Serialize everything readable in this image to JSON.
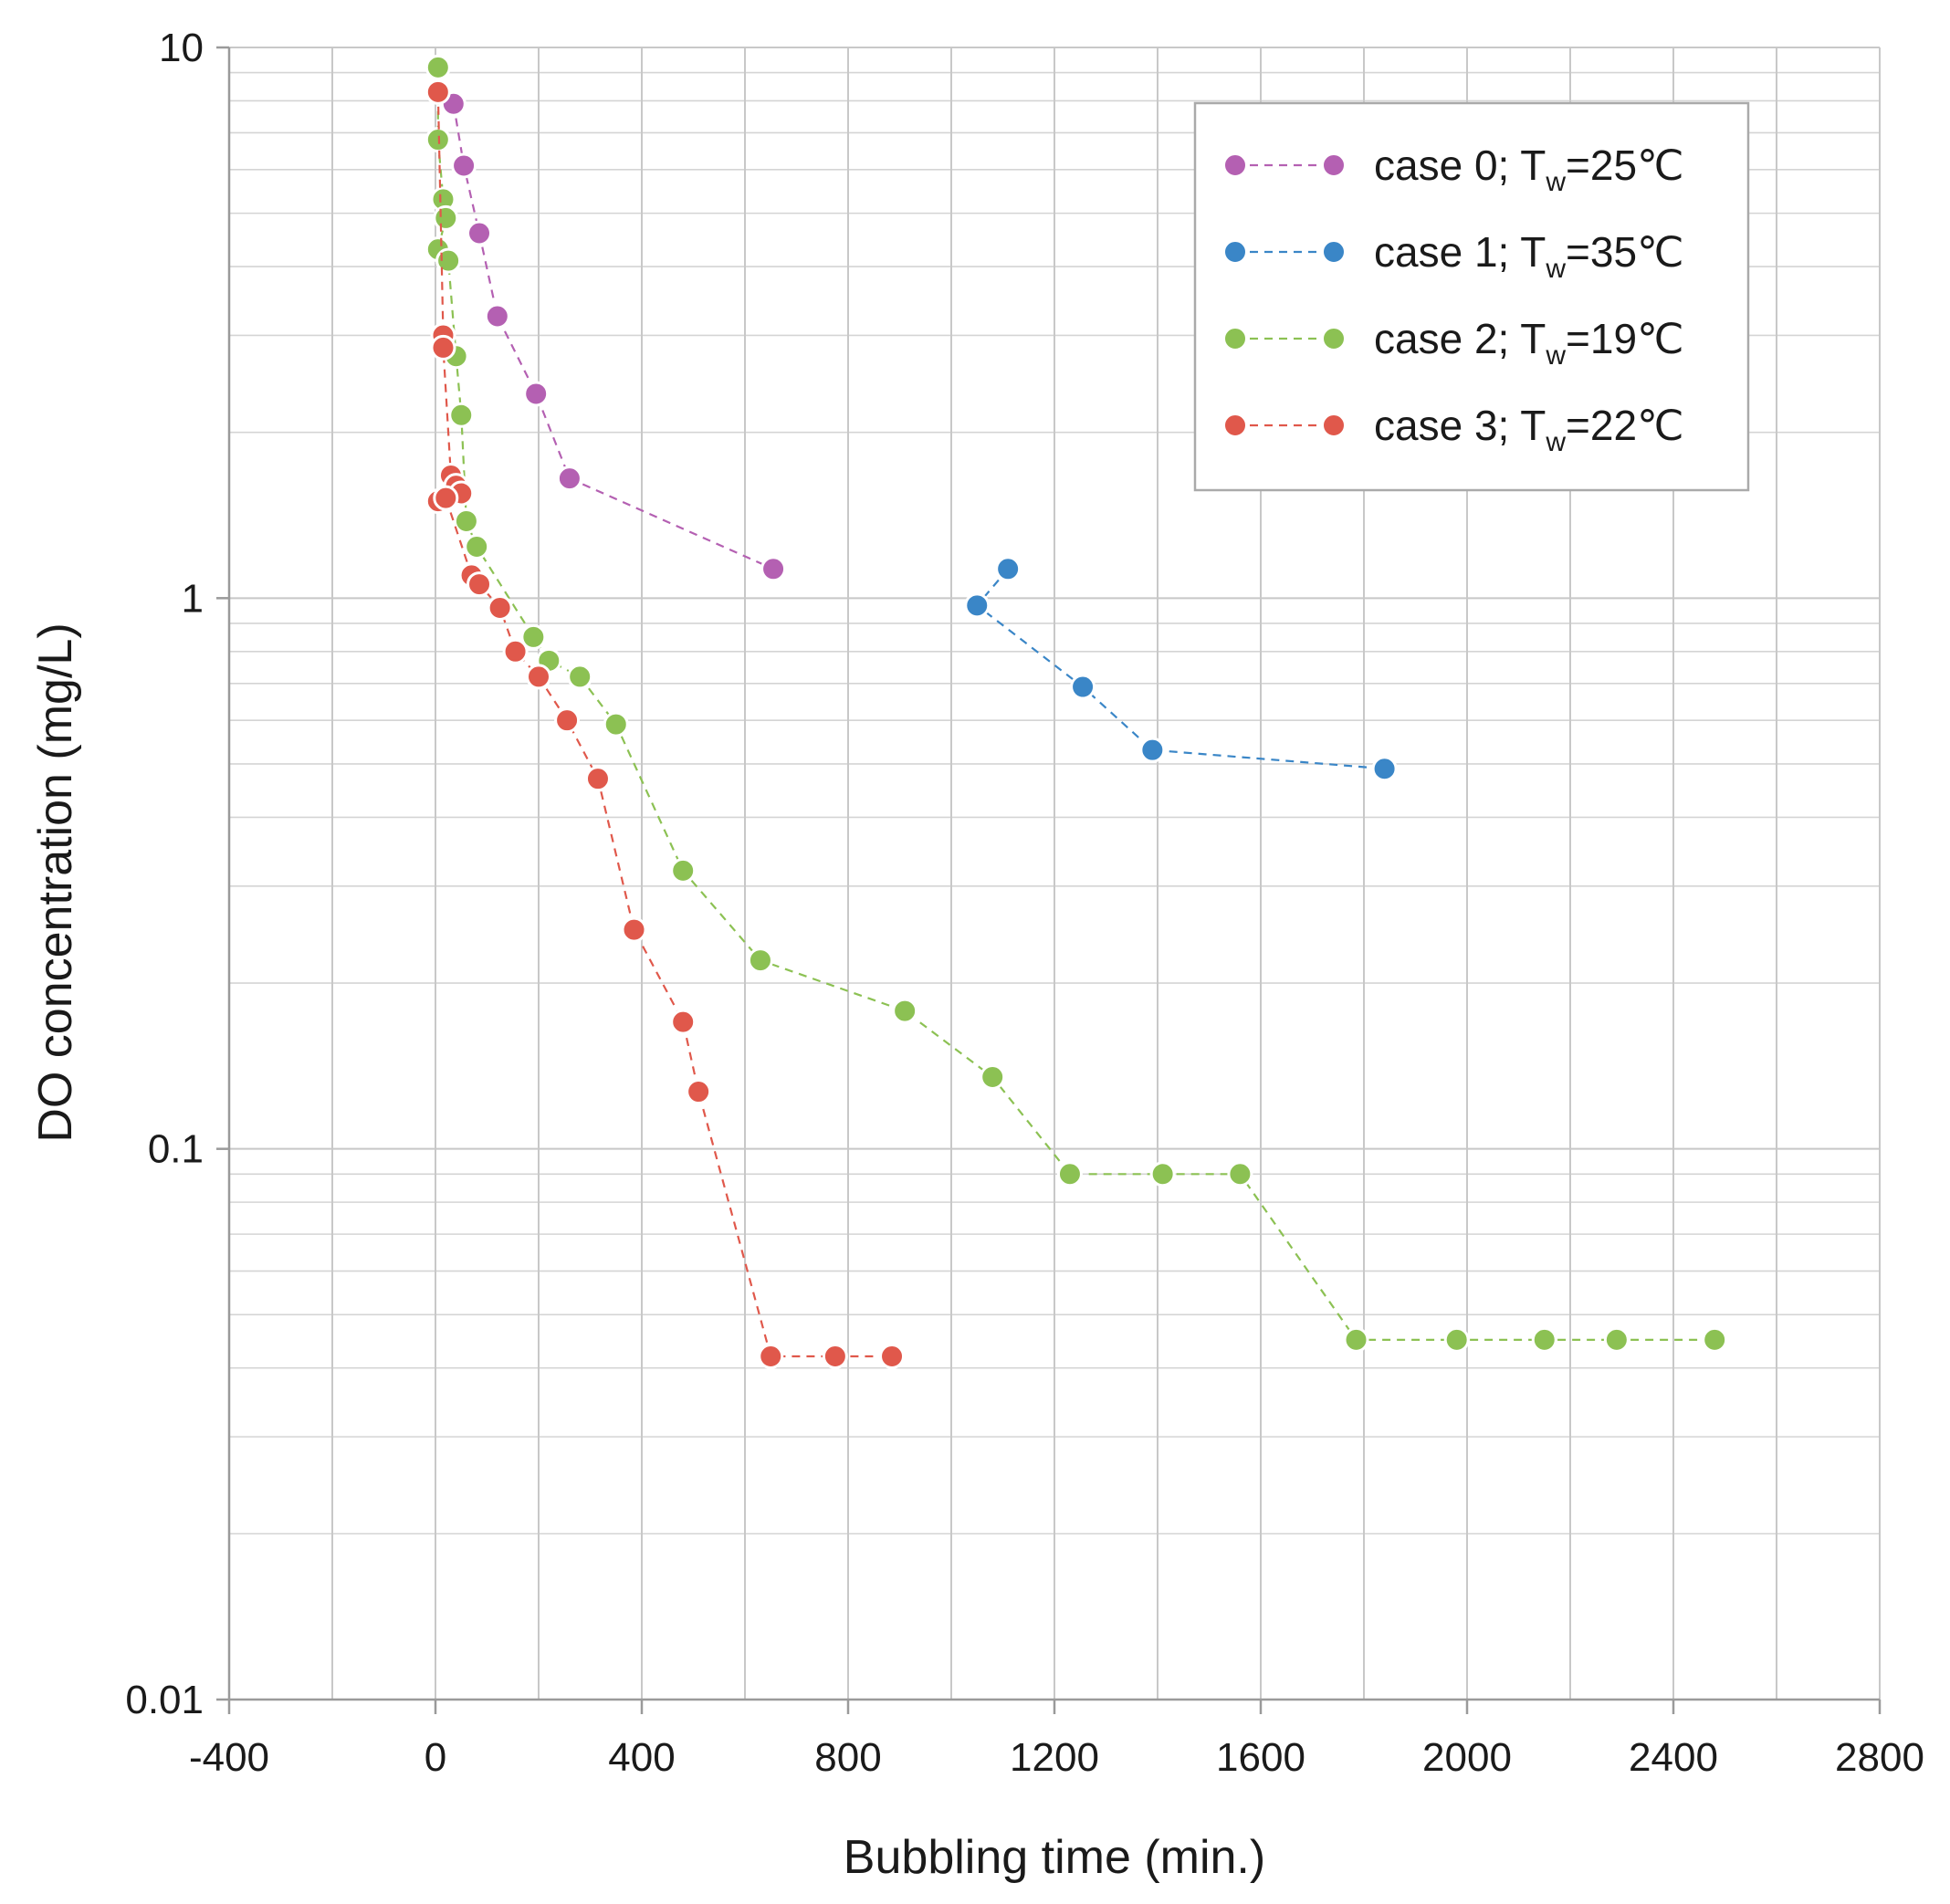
{
  "chart_data": {
    "type": "scatter",
    "title": "",
    "xlabel": "Bubbling time (min.)",
    "ylabel": "DO concentration (mg/L)",
    "xlim": [
      -400,
      2800
    ],
    "ylim": [
      0.01,
      10
    ],
    "yscale": "log",
    "x_ticks": [
      -400,
      0,
      400,
      800,
      1200,
      1600,
      2000,
      2400,
      2800
    ],
    "x_tick_labels": [
      "-400",
      "0",
      "400",
      "800",
      "1200",
      "1600",
      "2000",
      "2400",
      "2800"
    ],
    "y_ticks": [
      10,
      1,
      0.1,
      0.01
    ],
    "y_tick_labels": [
      "10",
      "1",
      "0.1",
      "0.01"
    ],
    "grid": true,
    "legend_position": "top-right",
    "series": [
      {
        "name": "case 0; T_w=25℃",
        "label_main": "case 0; T",
        "label_sub": "w",
        "label_rest": "=25℃",
        "color": "#b460b2",
        "x": [
          35,
          55,
          85,
          120,
          195,
          260,
          655
        ],
        "y": [
          7.9,
          6.1,
          4.6,
          3.25,
          2.35,
          1.65,
          1.13
        ]
      },
      {
        "name": "case 1; T_w=35℃",
        "label_main": "case 1; T",
        "label_sub": "w",
        "label_rest": "=35℃",
        "color": "#3a86c7",
        "x": [
          1110,
          1050,
          1255,
          1390,
          1840
        ],
        "y": [
          1.13,
          0.97,
          0.69,
          0.53,
          0.49
        ]
      },
      {
        "name": "case 2; T_w=19℃",
        "label_main": "case 2; T",
        "label_sub": "w",
        "label_rest": "=19℃",
        "color": "#8cc153",
        "x": [
          5,
          5,
          15,
          20,
          5,
          25,
          40,
          50,
          60,
          80,
          190,
          220,
          280,
          350,
          480,
          630,
          910,
          1080,
          1230,
          1410,
          1560,
          1785,
          1980,
          2150,
          2290,
          2480
        ],
        "y": [
          9.2,
          6.8,
          5.3,
          4.9,
          4.3,
          4.1,
          2.75,
          2.15,
          1.38,
          1.24,
          0.85,
          0.77,
          0.72,
          0.59,
          0.32,
          0.22,
          0.178,
          0.135,
          0.09,
          0.09,
          0.09,
          0.045,
          0.045,
          0.045,
          0.045,
          0.045
        ]
      },
      {
        "name": "case 3; T_w=22℃",
        "label_main": "case 3; T",
        "label_sub": "w",
        "label_rest": "=22℃",
        "color": "#e0584b",
        "x": [
          5,
          15,
          15,
          30,
          40,
          50,
          5,
          20,
          70,
          85,
          125,
          155,
          200,
          255,
          315,
          385,
          480,
          510,
          650,
          775,
          885
        ],
        "y": [
          8.3,
          3.0,
          2.85,
          1.67,
          1.6,
          1.55,
          1.5,
          1.52,
          1.1,
          1.06,
          0.96,
          0.8,
          0.72,
          0.6,
          0.47,
          0.25,
          0.17,
          0.127,
          0.042,
          0.042,
          0.042
        ]
      }
    ]
  }
}
